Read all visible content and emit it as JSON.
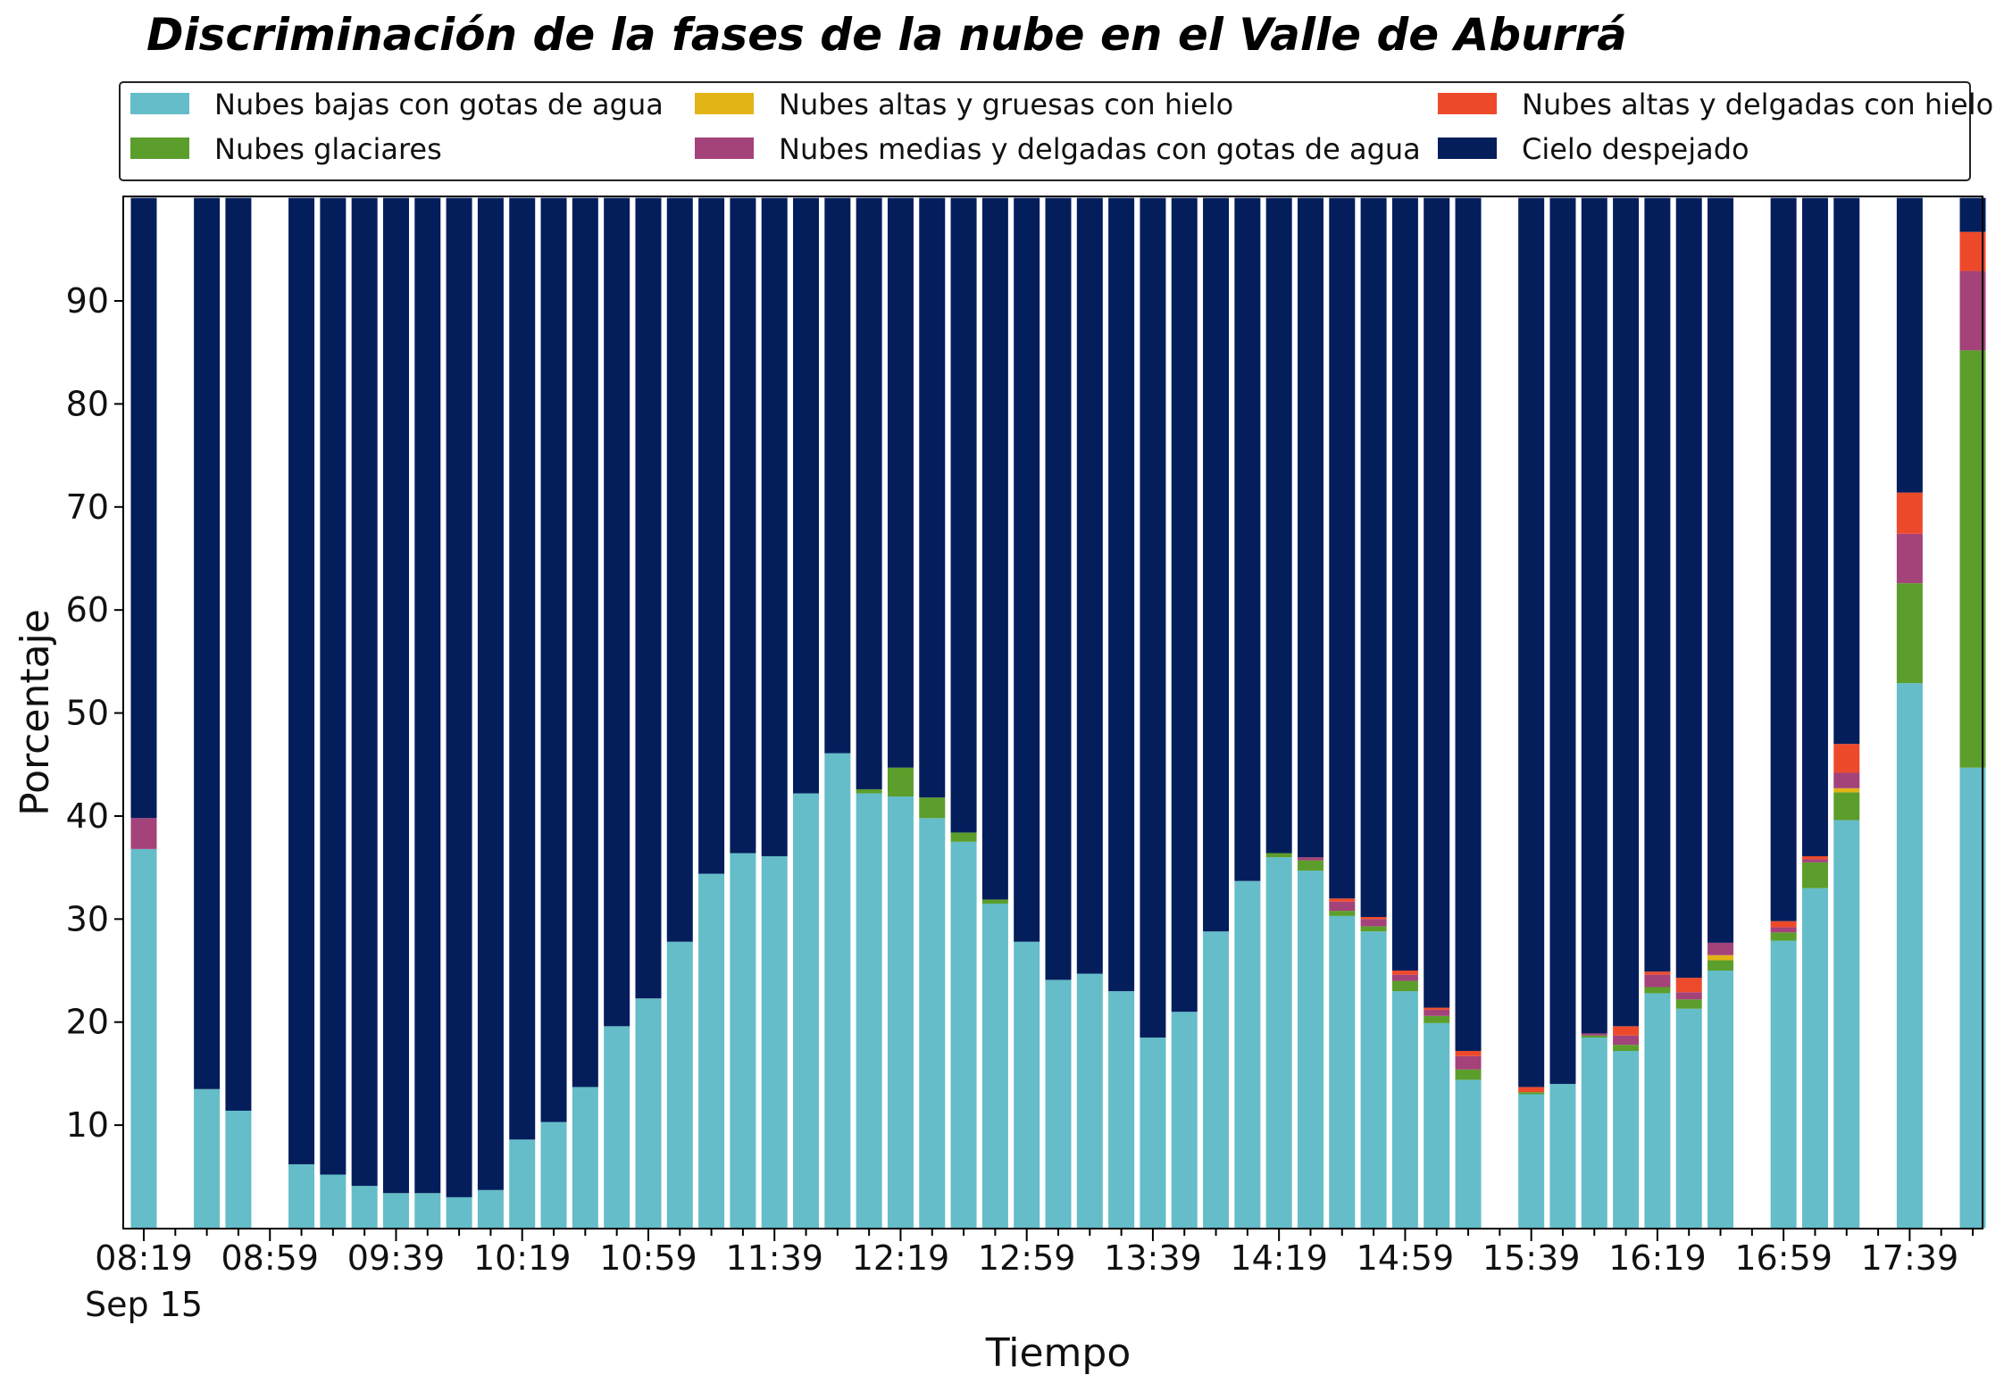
{
  "chart_data": {
    "type": "bar",
    "stacked": true,
    "title": "Discriminación de la fases de la nube en el Valle de Aburrá",
    "xlabel": "Tiempo",
    "ylabel": "Porcentaje",
    "ylim": [
      0,
      100
    ],
    "yticks": [
      10,
      20,
      30,
      40,
      50,
      60,
      70,
      80,
      90
    ],
    "xtick_labels": [
      "08:19",
      "08:59",
      "09:39",
      "10:19",
      "10:59",
      "11:39",
      "12:19",
      "12:59",
      "13:39",
      "14:19",
      "14:59",
      "15:39",
      "16:19",
      "16:59",
      "17:39"
    ],
    "xtick_slots": [
      0,
      4,
      8,
      12,
      16,
      20,
      24,
      28,
      32,
      36,
      40,
      44,
      48,
      52,
      56
    ],
    "date_label": "Sep 15",
    "legend": {
      "position": "top",
      "columns": 3,
      "entries": [
        "Nubes bajas con gotas de agua",
        "Nubes altas y gruesas con hielo",
        "Nubes altas y delgadas con hielo",
        "Nubes glaciares",
        "Nubes medias y delgadas con gotas de agua",
        "Cielo despejado"
      ]
    },
    "categories": [
      "08:19",
      "08:29",
      "08:39",
      "08:49",
      "08:59",
      "09:09",
      "09:19",
      "09:29",
      "09:39",
      "09:49",
      "09:59",
      "10:09",
      "10:19",
      "10:29",
      "10:39",
      "10:49",
      "10:59",
      "11:09",
      "11:19",
      "11:29",
      "11:39",
      "11:49",
      "11:59",
      "12:09",
      "12:19",
      "12:29",
      "12:39",
      "12:49",
      "12:59",
      "13:09",
      "13:19",
      "13:29",
      "13:39",
      "13:49",
      "13:59",
      "14:09",
      "14:19",
      "14:29",
      "14:39",
      "14:49",
      "14:59",
      "15:09",
      "15:19",
      "15:29",
      "15:39",
      "15:49",
      "15:59",
      "16:09",
      "16:19",
      "16:29",
      "16:39",
      "16:49",
      "16:59",
      "17:09",
      "17:19",
      "17:29",
      "17:39",
      "17:49",
      "17:59"
    ],
    "series": [
      {
        "name": "Nubes bajas con gotas de agua",
        "color": "#64bdc8",
        "values": [
          36.8,
          null,
          13.5,
          11.4,
          null,
          6.2,
          5.2,
          4.1,
          3.4,
          3.4,
          3.0,
          3.7,
          8.6,
          10.3,
          13.7,
          19.6,
          22.3,
          27.8,
          34.4,
          36.4,
          36.1,
          42.2,
          46.1,
          42.2,
          41.9,
          39.8,
          37.5,
          31.5,
          27.8,
          24.1,
          24.7,
          23.0,
          18.5,
          21.0,
          28.8,
          33.7,
          36.0,
          34.7,
          30.3,
          28.8,
          23.0,
          19.9,
          14.4,
          null,
          13.0,
          14.0,
          18.5,
          17.2,
          22.8,
          21.3,
          25.0,
          null,
          27.9,
          33.0,
          39.6,
          null,
          52.9,
          null,
          44.7
        ]
      },
      {
        "name": "Nubes glaciares",
        "color": "#5c9e2c",
        "values": [
          0,
          null,
          0,
          0,
          null,
          0,
          0,
          0,
          0,
          0,
          0,
          0,
          0,
          0,
          0,
          0,
          0,
          0,
          0,
          0,
          0,
          0,
          0,
          0.4,
          2.8,
          2.0,
          0.9,
          0.4,
          0,
          0,
          0,
          0,
          0,
          0,
          0,
          0,
          0.4,
          1.0,
          0.5,
          0.5,
          1.0,
          0.7,
          1.0,
          null,
          0.2,
          0,
          0.2,
          0.6,
          0.6,
          0.9,
          1.0,
          null,
          0.8,
          2.5,
          2.7,
          null,
          9.7,
          null,
          40.5
        ]
      },
      {
        "name": "Nubes altas y gruesas con hielo",
        "color": "#e3b416",
        "values": [
          0,
          null,
          0,
          0,
          null,
          0,
          0,
          0,
          0,
          0,
          0,
          0,
          0,
          0,
          0,
          0,
          0,
          0,
          0,
          0,
          0,
          0,
          0,
          0,
          0,
          0,
          0,
          0,
          0,
          0,
          0,
          0,
          0,
          0,
          0,
          0,
          0,
          0,
          0,
          0,
          0,
          0,
          0,
          null,
          0,
          0,
          0,
          0,
          0,
          0,
          0.5,
          null,
          0,
          0,
          0.4,
          null,
          0,
          null,
          0
        ]
      },
      {
        "name": "Nubes medias y delgadas con gotas de agua",
        "color": "#a4427a",
        "values": [
          3.0,
          null,
          0,
          0,
          null,
          0,
          0,
          0,
          0,
          0,
          0,
          0,
          0,
          0,
          0,
          0,
          0,
          0,
          0,
          0,
          0,
          0,
          0,
          0,
          0,
          0,
          0,
          0,
          0,
          0,
          0,
          0,
          0,
          0,
          0,
          0,
          0,
          0.3,
          0.9,
          0.7,
          0.6,
          0.6,
          1.3,
          null,
          0,
          0,
          0.2,
          0.9,
          1.2,
          0.7,
          1.2,
          null,
          0.5,
          0.3,
          1.5,
          null,
          4.8,
          null,
          7.7
        ]
      },
      {
        "name": "Nubes altas y delgadas con hielo",
        "color": "#ed4a2b",
        "values": [
          0,
          null,
          0,
          0,
          null,
          0,
          0,
          0,
          0,
          0,
          0,
          0,
          0,
          0,
          0,
          0,
          0,
          0,
          0,
          0,
          0,
          0,
          0,
          0,
          0,
          0,
          0,
          0,
          0,
          0,
          0,
          0,
          0,
          0,
          0,
          0,
          0,
          0,
          0.3,
          0.2,
          0.4,
          0.2,
          0.5,
          null,
          0.5,
          0,
          0,
          0.9,
          0.3,
          1.4,
          0,
          null,
          0.6,
          0.3,
          2.8,
          null,
          4.0,
          null,
          3.8
        ]
      },
      {
        "name": "Cielo despejado",
        "color": "#041e5c",
        "values": [
          60.2,
          null,
          86.5,
          88.6,
          null,
          93.8,
          94.8,
          95.9,
          96.6,
          96.6,
          97.0,
          96.3,
          91.4,
          89.7,
          86.3,
          80.4,
          77.7,
          72.2,
          65.6,
          63.6,
          63.9,
          57.8,
          53.9,
          57.4,
          55.3,
          58.2,
          61.6,
          68.1,
          72.2,
          75.9,
          75.3,
          77.0,
          81.5,
          79.0,
          71.2,
          66.3,
          63.6,
          64.0,
          68.0,
          69.8,
          75.0,
          78.6,
          82.8,
          null,
          86.3,
          86.0,
          81.1,
          80.4,
          75.1,
          75.7,
          72.3,
          null,
          70.2,
          63.9,
          53.0,
          null,
          28.6,
          null,
          3.3
        ]
      }
    ]
  }
}
